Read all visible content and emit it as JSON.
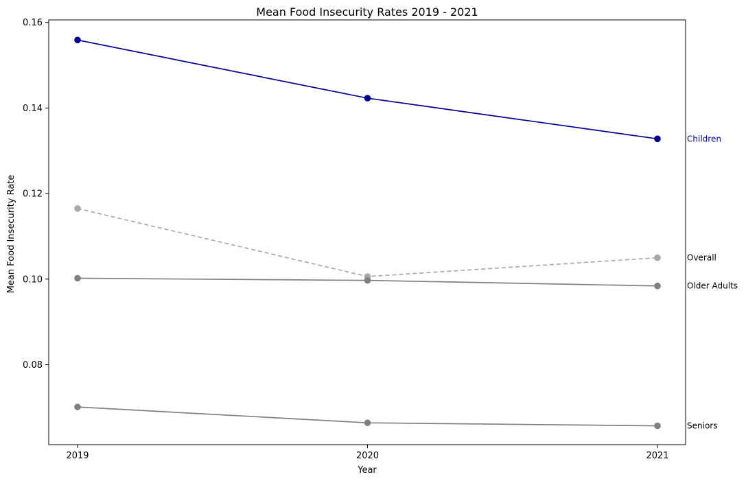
{
  "chart_data": {
    "type": "line",
    "title": "Mean Food Insecurity Rates 2019 - 2021",
    "xlabel": "Year",
    "ylabel": "Mean Food Insecurity Rate",
    "x": [
      "2019",
      "2020",
      "2021"
    ],
    "ylim": [
      0.0613,
      0.1606
    ],
    "yticks": [
      "0.08",
      "0.10",
      "0.12",
      "0.14",
      "0.16"
    ],
    "ytick_values": [
      0.08,
      0.1,
      0.12,
      0.14,
      0.16
    ],
    "grid": false,
    "legend": "none (series labelled directly at right end of lines)",
    "series": [
      {
        "name": "Children",
        "values": [
          0.1559,
          0.1423,
          0.1328
        ],
        "color": "#00008b",
        "label_color": "#00008b",
        "dashed": false
      },
      {
        "name": "Overall",
        "values": [
          0.1165,
          0.1006,
          0.105
        ],
        "color": "#a9a9a9",
        "label_color": "#000000",
        "dashed": true
      },
      {
        "name": "Older Adults",
        "values": [
          0.1002,
          0.0997,
          0.0984
        ],
        "color": "#808080",
        "label_color": "#000000",
        "dashed": false
      },
      {
        "name": "Seniors",
        "values": [
          0.0701,
          0.0664,
          0.0657
        ],
        "color": "#808080",
        "label_color": "#000000",
        "dashed": false
      }
    ]
  }
}
